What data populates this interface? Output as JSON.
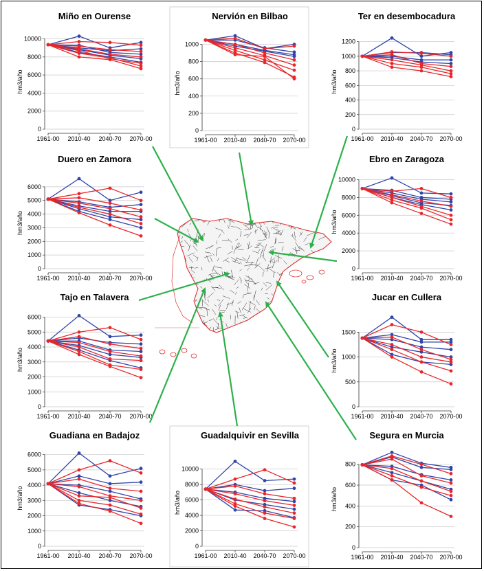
{
  "colors": {
    "blue": "#2f45a8",
    "red": "#e8262a",
    "grid": "#c8c8c8",
    "arrow": "#2bb04a",
    "map_coast": "#e03030",
    "map_rivers": "#1a1a1a"
  },
  "map": {
    "icon": "spain-river-network-map"
  },
  "chart_data": [
    {
      "type": "line",
      "title": "Miño en Ourense",
      "ylabel": "hm3/año",
      "categories": [
        "1961-00",
        "2010-40",
        "2040-70",
        "2070-00"
      ],
      "yticks": [
        0,
        2000,
        4000,
        6000,
        8000,
        10000
      ],
      "ylim": [
        0,
        10500
      ],
      "grid": true,
      "series": [
        {
          "color": "blue",
          "values": [
            9350,
            10300,
            9000,
            9600
          ]
        },
        {
          "color": "blue",
          "values": [
            9350,
            9300,
            8500,
            8300
          ]
        },
        {
          "color": "blue",
          "values": [
            9350,
            9000,
            8700,
            8900
          ]
        },
        {
          "color": "blue",
          "values": [
            9350,
            8800,
            8200,
            7800
          ]
        },
        {
          "color": "blue",
          "values": [
            9350,
            8500,
            8000,
            7400
          ]
        },
        {
          "color": "red",
          "values": [
            9350,
            9700,
            9600,
            9300
          ]
        },
        {
          "color": "red",
          "values": [
            9350,
            9200,
            8800,
            8600
          ]
        },
        {
          "color": "red",
          "values": [
            9350,
            8900,
            8300,
            8000
          ]
        },
        {
          "color": "red",
          "values": [
            9350,
            8700,
            7800,
            7300
          ]
        },
        {
          "color": "red",
          "values": [
            9350,
            8400,
            7900,
            7000
          ]
        },
        {
          "color": "red",
          "values": [
            9350,
            8000,
            7700,
            6700
          ]
        }
      ]
    },
    {
      "type": "line",
      "title": "Nervión en Bilbao",
      "ylabel": "hm3/año",
      "categories": [
        "1961-00",
        "2010-40",
        "2040-70",
        "2070-00"
      ],
      "yticks": [
        0,
        200,
        400,
        600,
        800,
        1000
      ],
      "ylim": [
        0,
        1100
      ],
      "grid": true,
      "series": [
        {
          "color": "blue",
          "values": [
            1050,
            1100,
            950,
            1000
          ]
        },
        {
          "color": "blue",
          "values": [
            1050,
            1050,
            960,
            910
          ]
        },
        {
          "color": "blue",
          "values": [
            1050,
            1000,
            930,
            880
          ]
        },
        {
          "color": "blue",
          "values": [
            1050,
            980,
            920,
            860
          ]
        },
        {
          "color": "red",
          "values": [
            1050,
            1070,
            950,
            980
          ]
        },
        {
          "color": "red",
          "values": [
            1050,
            1000,
            900,
            820
          ]
        },
        {
          "color": "red",
          "values": [
            1050,
            960,
            870,
            760
          ]
        },
        {
          "color": "red",
          "values": [
            1050,
            930,
            820,
            700
          ]
        },
        {
          "color": "red",
          "values": [
            1050,
            900,
            790,
            620
          ]
        },
        {
          "color": "red",
          "values": [
            1050,
            880,
            860,
            600
          ]
        }
      ]
    },
    {
      "type": "line",
      "title": "Ter en desembocadura",
      "ylabel": "hm3/año",
      "categories": [
        "1961-00",
        "2010-40",
        "2040-70",
        "2070-00"
      ],
      "yticks": [
        0,
        200,
        400,
        600,
        800,
        1000,
        1200
      ],
      "ylim": [
        0,
        1300
      ],
      "grid": true,
      "series": [
        {
          "color": "blue",
          "values": [
            1000,
            1250,
            1000,
            1050
          ]
        },
        {
          "color": "blue",
          "values": [
            1000,
            1050,
            1050,
            1020
          ]
        },
        {
          "color": "blue",
          "values": [
            1000,
            1000,
            950,
            950
          ]
        },
        {
          "color": "blue",
          "values": [
            1000,
            980,
            920,
            900
          ]
        },
        {
          "color": "red",
          "values": [
            1000,
            1060,
            1040,
            1000
          ]
        },
        {
          "color": "red",
          "values": [
            1000,
            1020,
            900,
            860
          ]
        },
        {
          "color": "red",
          "values": [
            1000,
            950,
            880,
            800
          ]
        },
        {
          "color": "red",
          "values": [
            1000,
            900,
            850,
            760
          ]
        },
        {
          "color": "red",
          "values": [
            1000,
            850,
            800,
            720
          ]
        }
      ]
    },
    {
      "type": "line",
      "title": "Duero en Zamora",
      "ylabel": "hm3/año",
      "categories": [
        "1961-00",
        "2010-40",
        "2040-70",
        "2070-00"
      ],
      "yticks": [
        0,
        1000,
        2000,
        3000,
        4000,
        5000,
        6000
      ],
      "ylim": [
        0,
        6700
      ],
      "grid": true,
      "series": [
        {
          "color": "blue",
          "values": [
            5100,
            6600,
            5000,
            5600
          ]
        },
        {
          "color": "blue",
          "values": [
            5100,
            4900,
            4500,
            4700
          ]
        },
        {
          "color": "blue",
          "values": [
            5100,
            4600,
            4200,
            4200
          ]
        },
        {
          "color": "blue",
          "values": [
            5100,
            4400,
            3800,
            3600
          ]
        },
        {
          "color": "blue",
          "values": [
            5100,
            4200,
            3600,
            3000
          ]
        },
        {
          "color": "red",
          "values": [
            5100,
            5500,
            5900,
            5000
          ]
        },
        {
          "color": "red",
          "values": [
            5100,
            5200,
            4800,
            4300
          ]
        },
        {
          "color": "red",
          "values": [
            5100,
            4800,
            4400,
            3800
          ]
        },
        {
          "color": "red",
          "values": [
            5100,
            4500,
            4000,
            3300
          ]
        },
        {
          "color": "red",
          "values": [
            5100,
            4100,
            3200,
            2400
          ]
        }
      ]
    },
    {
      "type": "line",
      "title": "Ebro en Zaragoza",
      "ylabel": "hm3/año",
      "categories": [
        "1961-00",
        "2010-40",
        "2040-70",
        "2070-00"
      ],
      "yticks": [
        0,
        2000,
        4000,
        6000,
        8000,
        10000
      ],
      "ylim": [
        0,
        10500
      ],
      "grid": true,
      "series": [
        {
          "color": "blue",
          "values": [
            9000,
            10200,
            8500,
            8400
          ]
        },
        {
          "color": "blue",
          "values": [
            9000,
            8800,
            8000,
            7800
          ]
        },
        {
          "color": "blue",
          "values": [
            9000,
            8500,
            7800,
            7500
          ]
        },
        {
          "color": "blue",
          "values": [
            9000,
            8200,
            7400,
            7100
          ]
        },
        {
          "color": "blue",
          "values": [
            9000,
            8000,
            7200,
            6600
          ]
        },
        {
          "color": "red",
          "values": [
            9000,
            8700,
            9000,
            8000
          ]
        },
        {
          "color": "red",
          "values": [
            9000,
            8300,
            7600,
            7000
          ]
        },
        {
          "color": "red",
          "values": [
            9000,
            8000,
            7000,
            6000
          ]
        },
        {
          "color": "red",
          "values": [
            9000,
            7700,
            6800,
            5500
          ]
        },
        {
          "color": "red",
          "values": [
            9000,
            7400,
            6200,
            5000
          ]
        }
      ]
    },
    {
      "type": "line",
      "title": "Tajo en Talavera",
      "ylabel": "hm3/año",
      "categories": [
        "1961-00",
        "2010-40",
        "2040-70",
        "2070-00"
      ],
      "yticks": [
        0,
        1000,
        2000,
        3000,
        4000,
        5000,
        6000
      ],
      "ylim": [
        0,
        6300
      ],
      "grid": true,
      "series": [
        {
          "color": "blue",
          "values": [
            4400,
            6100,
            4700,
            4800
          ]
        },
        {
          "color": "blue",
          "values": [
            4400,
            4600,
            4300,
            4200
          ]
        },
        {
          "color": "blue",
          "values": [
            4400,
            4400,
            3800,
            3700
          ]
        },
        {
          "color": "blue",
          "values": [
            4400,
            4100,
            3500,
            3300
          ]
        },
        {
          "color": "blue",
          "values": [
            4400,
            3800,
            3100,
            2600
          ]
        },
        {
          "color": "red",
          "values": [
            4400,
            5000,
            5300,
            4500
          ]
        },
        {
          "color": "red",
          "values": [
            4400,
            4700,
            4200,
            3900
          ]
        },
        {
          "color": "red",
          "values": [
            4400,
            4300,
            3700,
            3400
          ]
        },
        {
          "color": "red",
          "values": [
            4400,
            4000,
            3200,
            3100
          ]
        },
        {
          "color": "red",
          "values": [
            4400,
            3700,
            2800,
            2500
          ]
        },
        {
          "color": "red",
          "values": [
            4400,
            3500,
            2700,
            1950
          ]
        }
      ]
    },
    {
      "type": "line",
      "title": "Jucar en Cullera",
      "ylabel": "hm3/año",
      "categories": [
        "1961-00",
        "2010-40",
        "2040-70",
        "2070-00"
      ],
      "yticks": [
        0,
        500,
        1000,
        1500
      ],
      "ylim": [
        0,
        1850
      ],
      "grid": true,
      "series": [
        {
          "color": "blue",
          "values": [
            1380,
            1800,
            1350,
            1350
          ]
        },
        {
          "color": "blue",
          "values": [
            1380,
            1450,
            1300,
            1300
          ]
        },
        {
          "color": "blue",
          "values": [
            1380,
            1350,
            1200,
            1150
          ]
        },
        {
          "color": "blue",
          "values": [
            1380,
            1200,
            1100,
            1000
          ]
        },
        {
          "color": "blue",
          "values": [
            1380,
            1050,
            900,
            850
          ]
        },
        {
          "color": "red",
          "values": [
            1380,
            1650,
            1500,
            1250
          ]
        },
        {
          "color": "red",
          "values": [
            1380,
            1400,
            1150,
            950
          ]
        },
        {
          "color": "red",
          "values": [
            1380,
            1250,
            1000,
            900
          ]
        },
        {
          "color": "red",
          "values": [
            1380,
            1150,
            900,
            720
          ]
        },
        {
          "color": "red",
          "values": [
            1380,
            1000,
            700,
            460
          ]
        }
      ]
    },
    {
      "type": "line",
      "title": "Guadiana en Badajoz",
      "ylabel": "hm3/año",
      "categories": [
        "1961-00",
        "2010-40",
        "2040-70",
        "2070-00"
      ],
      "yticks": [
        0,
        1000,
        2000,
        3000,
        4000,
        5000,
        6000
      ],
      "ylim": [
        0,
        6300
      ],
      "grid": true,
      "series": [
        {
          "color": "blue",
          "values": [
            4100,
            6100,
            4600,
            5100
          ]
        },
        {
          "color": "blue",
          "values": [
            4100,
            4600,
            4100,
            4200
          ]
        },
        {
          "color": "blue",
          "values": [
            4100,
            4000,
            3600,
            3100
          ]
        },
        {
          "color": "blue",
          "values": [
            4100,
            3500,
            3000,
            2600
          ]
        },
        {
          "color": "blue",
          "values": [
            4100,
            2700,
            2400,
            2000
          ]
        },
        {
          "color": "red",
          "values": [
            4100,
            5000,
            5600,
            4800
          ]
        },
        {
          "color": "red",
          "values": [
            4100,
            4400,
            3800,
            3600
          ]
        },
        {
          "color": "red",
          "values": [
            4100,
            3900,
            3300,
            3000
          ]
        },
        {
          "color": "red",
          "values": [
            4100,
            3300,
            3200,
            2500
          ]
        },
        {
          "color": "red",
          "values": [
            4100,
            3000,
            2700,
            2100
          ]
        },
        {
          "color": "red",
          "values": [
            4100,
            2800,
            2300,
            1500
          ]
        }
      ]
    },
    {
      "type": "line",
      "title": "Guadalquivir en Sevilla",
      "ylabel": "hm3/año",
      "categories": [
        "1961-00",
        "2010-40",
        "2040-70",
        "2070-00"
      ],
      "yticks": [
        0,
        2000,
        4000,
        6000,
        8000,
        10000
      ],
      "ylim": [
        0,
        11300
      ],
      "grid": true,
      "series": [
        {
          "color": "blue",
          "values": [
            7400,
            11000,
            8500,
            8700
          ]
        },
        {
          "color": "blue",
          "values": [
            7400,
            8000,
            7200,
            7500
          ]
        },
        {
          "color": "blue",
          "values": [
            7400,
            7000,
            6200,
            5800
          ]
        },
        {
          "color": "blue",
          "values": [
            7400,
            6000,
            5400,
            4800
          ]
        },
        {
          "color": "blue",
          "values": [
            7400,
            4700,
            4600,
            3700
          ]
        },
        {
          "color": "red",
          "values": [
            7400,
            8700,
            9900,
            8200
          ]
        },
        {
          "color": "red",
          "values": [
            7400,
            7800,
            6800,
            6200
          ]
        },
        {
          "color": "red",
          "values": [
            7400,
            6800,
            5900,
            5300
          ]
        },
        {
          "color": "red",
          "values": [
            7400,
            6100,
            5100,
            4300
          ]
        },
        {
          "color": "red",
          "values": [
            7400,
            5500,
            4300,
            3600
          ]
        },
        {
          "color": "red",
          "values": [
            7400,
            5200,
            3600,
            2500
          ]
        }
      ]
    },
    {
      "type": "line",
      "title": "Segura en Murcia",
      "ylabel": "hm3/año",
      "categories": [
        "1961-00",
        "2010-40",
        "2040-70",
        "2070-00"
      ],
      "yticks": [
        0,
        200,
        400,
        600,
        800
      ],
      "ylim": [
        0,
        930
      ],
      "grid": true,
      "series": [
        {
          "color": "blue",
          "values": [
            795,
            915,
            810,
            770
          ]
        },
        {
          "color": "blue",
          "values": [
            795,
            870,
            770,
            750
          ]
        },
        {
          "color": "blue",
          "values": [
            795,
            780,
            700,
            650
          ]
        },
        {
          "color": "blue",
          "values": [
            795,
            720,
            640,
            560
          ]
        },
        {
          "color": "blue",
          "values": [
            795,
            650,
            600,
            460
          ]
        },
        {
          "color": "red",
          "values": [
            795,
            880,
            800,
            710
          ]
        },
        {
          "color": "red",
          "values": [
            795,
            850,
            690,
            620
          ]
        },
        {
          "color": "red",
          "values": [
            795,
            760,
            640,
            540
          ]
        },
        {
          "color": "red",
          "values": [
            795,
            690,
            580,
            500
          ]
        },
        {
          "color": "red",
          "values": [
            795,
            650,
            430,
            300
          ]
        }
      ]
    }
  ]
}
